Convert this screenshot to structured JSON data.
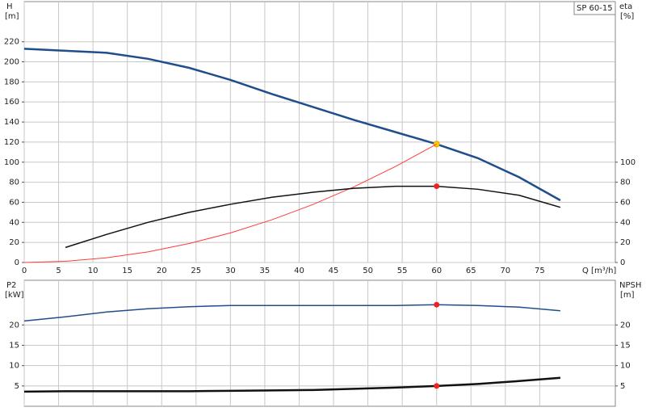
{
  "chart_data": [
    {
      "type": "line",
      "title": "SP 60-15",
      "xlabel": "Q [m³/h]",
      "ylabel": "H",
      "yunit": "[m]",
      "y2label": "eta",
      "y2unit": "[%]",
      "x": [
        0,
        6,
        12,
        18,
        24,
        30,
        36,
        42,
        48,
        54,
        60,
        66,
        72,
        78
      ],
      "xlim": [
        0,
        86
      ],
      "xticks": [
        0,
        5,
        10,
        15,
        20,
        25,
        30,
        35,
        40,
        45,
        50,
        55,
        60,
        65,
        70,
        75
      ],
      "show_xtick_labels": true,
      "ylim": [
        0,
        260
      ],
      "yticks": [
        0,
        20,
        40,
        60,
        80,
        100,
        120,
        140,
        160,
        180,
        200,
        220
      ],
      "y2lim": [
        0,
        260
      ],
      "y2ticks": [
        0,
        20,
        40,
        60,
        80,
        100
      ],
      "grid": true,
      "series": [
        {
          "color": "#1f4e8c",
          "width": 2.5,
          "values": [
            213,
            211,
            209,
            203,
            194,
            182,
            168,
            155,
            142,
            130,
            118,
            104,
            85,
            62
          ],
          "marker_index": 10,
          "marker_color": "#ffcc00"
        },
        {
          "color": "#ff3b3b",
          "width": 1,
          "values": [
            0,
            1.2,
            4.7,
            10.6,
            18.9,
            29.5,
            42.5,
            57.8,
            75.5,
            95.6,
            118,
            null,
            null,
            null
          ]
        },
        {
          "color": "#111111",
          "width": 1.5,
          "axis": "y2",
          "values": [
            null,
            15,
            28,
            40,
            50,
            58,
            65,
            70,
            74,
            76,
            76,
            73,
            67,
            55
          ],
          "marker_index": 10,
          "marker_color": "#ee2222"
        }
      ]
    },
    {
      "type": "line",
      "ylabel": "P2",
      "yunit": "[kW]",
      "y2label": "NPSH",
      "y2unit": "[m]",
      "x": [
        0,
        6,
        12,
        18,
        24,
        30,
        36,
        42,
        48,
        54,
        60,
        66,
        72,
        78
      ],
      "xlim": [
        0,
        86
      ],
      "xticks": [
        0,
        5,
        10,
        15,
        20,
        25,
        30,
        35,
        40,
        45,
        50,
        55,
        60,
        65,
        70,
        75
      ],
      "show_xtick_labels": false,
      "ylim": [
        0,
        31
      ],
      "yticks": [
        5,
        10,
        15,
        20
      ],
      "y2lim": [
        0,
        31
      ],
      "y2ticks": [
        5,
        10,
        15,
        20
      ],
      "grid": true,
      "series": [
        {
          "color": "#1f4e8c",
          "width": 1.5,
          "values": [
            21,
            22,
            23.2,
            24,
            24.5,
            24.8,
            24.8,
            24.8,
            24.8,
            24.8,
            25,
            24.8,
            24.4,
            23.5
          ],
          "marker_index": 10,
          "marker_color": "#ee2222"
        },
        {
          "color": "#111111",
          "width": 2.5,
          "axis": "y2",
          "values": [
            3.6,
            3.7,
            3.7,
            3.7,
            3.7,
            3.8,
            3.9,
            4.0,
            4.3,
            4.6,
            5.0,
            5.5,
            6.2,
            7.0
          ],
          "marker_index": 10,
          "marker_color": "#ee2222"
        }
      ]
    }
  ]
}
